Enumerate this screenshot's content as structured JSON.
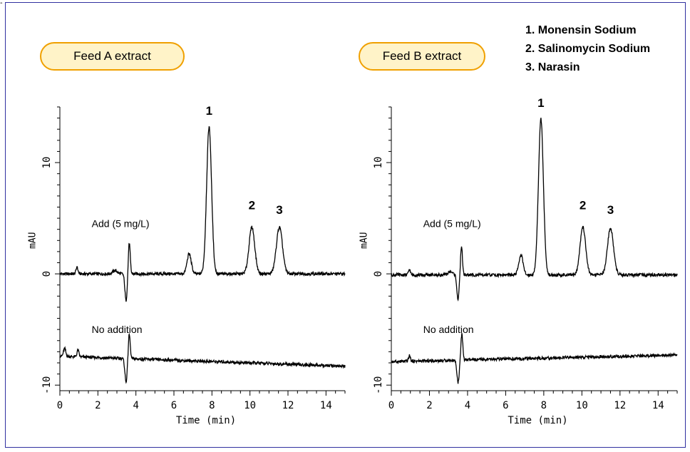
{
  "corner_mark": "-",
  "legend": [
    "1. Monensin Sodium",
    "2. Salinomycin Sodium",
    "3. Narasin"
  ],
  "chart_data": [
    {
      "type": "line",
      "title": "Feed A extract",
      "xlabel": "Time (min)",
      "ylabel": "mAU",
      "xlim": [
        0,
        15
      ],
      "ylim": [
        -10.5,
        15
      ],
      "x_ticks": [
        0,
        2,
        4,
        6,
        8,
        10,
        12,
        14
      ],
      "y_ticks": [
        -10,
        0,
        10
      ],
      "series": [
        {
          "name": "Add (5 mg/L)",
          "label_anchor": [
            1.0,
            4.2
          ],
          "baseline": 0.0,
          "peaks": [
            {
              "t": 0.9,
              "h": 0.6,
              "w": 0.05
            },
            {
              "t": 2.9,
              "h": 0.3,
              "w": 0.12
            },
            {
              "t": 3.48,
              "h": -2.4,
              "w": 0.06
            },
            {
              "t": 3.65,
              "h": 2.8,
              "w": 0.05
            },
            {
              "t": 6.8,
              "h": 1.8,
              "w": 0.11
            },
            {
              "t": 7.85,
              "h": 13.2,
              "w": 0.13
            },
            {
              "t": 10.1,
              "h": 4.2,
              "w": 0.15
            },
            {
              "t": 11.55,
              "h": 4.2,
              "w": 0.16
            }
          ]
        },
        {
          "name": "No addition",
          "label_anchor": [
            1.0,
            -5.3
          ],
          "baseline_start": -7.4,
          "baseline_end": -8.3,
          "peaks": [
            {
              "t": 0.25,
              "h": 0.7,
              "w": 0.06
            },
            {
              "t": 0.95,
              "h": 0.6,
              "w": 0.05
            },
            {
              "t": 3.48,
              "h": -2.1,
              "w": 0.06
            },
            {
              "t": 3.65,
              "h": 2.2,
              "w": 0.05
            }
          ]
        }
      ],
      "peak_labels": [
        {
          "label": "1",
          "t": 7.85,
          "y": 14.3
        },
        {
          "label": "2",
          "t": 10.1,
          "y": 5.8
        },
        {
          "label": "3",
          "t": 11.55,
          "y": 5.4
        }
      ]
    },
    {
      "type": "line",
      "title": "Feed B extract",
      "xlabel": "Time (min)",
      "ylabel": "mAU",
      "xlim": [
        0,
        15
      ],
      "ylim": [
        -10.5,
        15
      ],
      "x_ticks": [
        0,
        2,
        4,
        6,
        8,
        10,
        12,
        14
      ],
      "y_ticks": [
        -10,
        0,
        10
      ],
      "series": [
        {
          "name": "Add (5 mg/L)",
          "label_anchor": [
            1.0,
            4.2
          ],
          "baseline": -0.1,
          "peaks": [
            {
              "t": 0.95,
              "h": 0.5,
              "w": 0.05
            },
            {
              "t": 3.1,
              "h": 0.3,
              "w": 0.12
            },
            {
              "t": 3.5,
              "h": -2.2,
              "w": 0.06
            },
            {
              "t": 3.68,
              "h": 2.6,
              "w": 0.05
            },
            {
              "t": 6.8,
              "h": 1.8,
              "w": 0.11
            },
            {
              "t": 7.85,
              "h": 14.0,
              "w": 0.13
            },
            {
              "t": 10.05,
              "h": 4.3,
              "w": 0.15
            },
            {
              "t": 11.5,
              "h": 4.2,
              "w": 0.16
            }
          ]
        },
        {
          "name": "No addition",
          "label_anchor": [
            1.0,
            -5.3
          ],
          "baseline_start": -7.9,
          "baseline_end": -7.3,
          "peaks": [
            {
              "t": 0.95,
              "h": 0.5,
              "w": 0.05
            },
            {
              "t": 3.5,
              "h": -2.0,
              "w": 0.06
            },
            {
              "t": 3.7,
              "h": 2.3,
              "w": 0.05
            }
          ]
        }
      ],
      "peak_labels": [
        {
          "label": "1",
          "t": 7.85,
          "y": 15.0
        },
        {
          "label": "2",
          "t": 10.05,
          "y": 5.8
        },
        {
          "label": "3",
          "t": 11.5,
          "y": 5.4
        }
      ]
    }
  ]
}
